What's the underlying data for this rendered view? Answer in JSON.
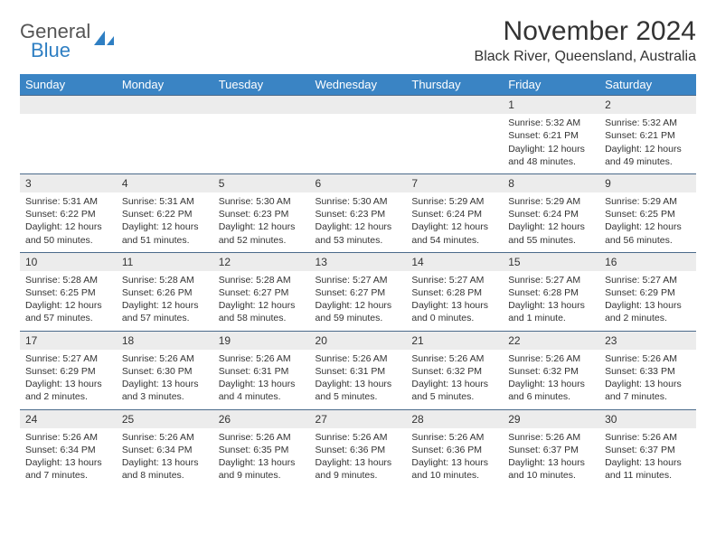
{
  "logo": {
    "word1": "General",
    "word2": "Blue",
    "gray": "#555555",
    "blue": "#2f7fc3"
  },
  "title": "November 2024",
  "location": "Black River, Queensland, Australia",
  "colors": {
    "header_bg": "#3a84c4",
    "header_fg": "#ffffff",
    "daynum_bg": "#ececec",
    "rule": "#4a6a8a",
    "text": "#333333",
    "page_bg": "#ffffff"
  },
  "day_names": [
    "Sunday",
    "Monday",
    "Tuesday",
    "Wednesday",
    "Thursday",
    "Friday",
    "Saturday"
  ],
  "weeks": [
    [
      {
        "num": "",
        "lines": []
      },
      {
        "num": "",
        "lines": []
      },
      {
        "num": "",
        "lines": []
      },
      {
        "num": "",
        "lines": []
      },
      {
        "num": "",
        "lines": []
      },
      {
        "num": "1",
        "lines": [
          "Sunrise: 5:32 AM",
          "Sunset: 6:21 PM",
          "Daylight: 12 hours and 48 minutes."
        ]
      },
      {
        "num": "2",
        "lines": [
          "Sunrise: 5:32 AM",
          "Sunset: 6:21 PM",
          "Daylight: 12 hours and 49 minutes."
        ]
      }
    ],
    [
      {
        "num": "3",
        "lines": [
          "Sunrise: 5:31 AM",
          "Sunset: 6:22 PM",
          "Daylight: 12 hours and 50 minutes."
        ]
      },
      {
        "num": "4",
        "lines": [
          "Sunrise: 5:31 AM",
          "Sunset: 6:22 PM",
          "Daylight: 12 hours and 51 minutes."
        ]
      },
      {
        "num": "5",
        "lines": [
          "Sunrise: 5:30 AM",
          "Sunset: 6:23 PM",
          "Daylight: 12 hours and 52 minutes."
        ]
      },
      {
        "num": "6",
        "lines": [
          "Sunrise: 5:30 AM",
          "Sunset: 6:23 PM",
          "Daylight: 12 hours and 53 minutes."
        ]
      },
      {
        "num": "7",
        "lines": [
          "Sunrise: 5:29 AM",
          "Sunset: 6:24 PM",
          "Daylight: 12 hours and 54 minutes."
        ]
      },
      {
        "num": "8",
        "lines": [
          "Sunrise: 5:29 AM",
          "Sunset: 6:24 PM",
          "Daylight: 12 hours and 55 minutes."
        ]
      },
      {
        "num": "9",
        "lines": [
          "Sunrise: 5:29 AM",
          "Sunset: 6:25 PM",
          "Daylight: 12 hours and 56 minutes."
        ]
      }
    ],
    [
      {
        "num": "10",
        "lines": [
          "Sunrise: 5:28 AM",
          "Sunset: 6:25 PM",
          "Daylight: 12 hours and 57 minutes."
        ]
      },
      {
        "num": "11",
        "lines": [
          "Sunrise: 5:28 AM",
          "Sunset: 6:26 PM",
          "Daylight: 12 hours and 57 minutes."
        ]
      },
      {
        "num": "12",
        "lines": [
          "Sunrise: 5:28 AM",
          "Sunset: 6:27 PM",
          "Daylight: 12 hours and 58 minutes."
        ]
      },
      {
        "num": "13",
        "lines": [
          "Sunrise: 5:27 AM",
          "Sunset: 6:27 PM",
          "Daylight: 12 hours and 59 minutes."
        ]
      },
      {
        "num": "14",
        "lines": [
          "Sunrise: 5:27 AM",
          "Sunset: 6:28 PM",
          "Daylight: 13 hours and 0 minutes."
        ]
      },
      {
        "num": "15",
        "lines": [
          "Sunrise: 5:27 AM",
          "Sunset: 6:28 PM",
          "Daylight: 13 hours and 1 minute."
        ]
      },
      {
        "num": "16",
        "lines": [
          "Sunrise: 5:27 AM",
          "Sunset: 6:29 PM",
          "Daylight: 13 hours and 2 minutes."
        ]
      }
    ],
    [
      {
        "num": "17",
        "lines": [
          "Sunrise: 5:27 AM",
          "Sunset: 6:29 PM",
          "Daylight: 13 hours and 2 minutes."
        ]
      },
      {
        "num": "18",
        "lines": [
          "Sunrise: 5:26 AM",
          "Sunset: 6:30 PM",
          "Daylight: 13 hours and 3 minutes."
        ]
      },
      {
        "num": "19",
        "lines": [
          "Sunrise: 5:26 AM",
          "Sunset: 6:31 PM",
          "Daylight: 13 hours and 4 minutes."
        ]
      },
      {
        "num": "20",
        "lines": [
          "Sunrise: 5:26 AM",
          "Sunset: 6:31 PM",
          "Daylight: 13 hours and 5 minutes."
        ]
      },
      {
        "num": "21",
        "lines": [
          "Sunrise: 5:26 AM",
          "Sunset: 6:32 PM",
          "Daylight: 13 hours and 5 minutes."
        ]
      },
      {
        "num": "22",
        "lines": [
          "Sunrise: 5:26 AM",
          "Sunset: 6:32 PM",
          "Daylight: 13 hours and 6 minutes."
        ]
      },
      {
        "num": "23",
        "lines": [
          "Sunrise: 5:26 AM",
          "Sunset: 6:33 PM",
          "Daylight: 13 hours and 7 minutes."
        ]
      }
    ],
    [
      {
        "num": "24",
        "lines": [
          "Sunrise: 5:26 AM",
          "Sunset: 6:34 PM",
          "Daylight: 13 hours and 7 minutes."
        ]
      },
      {
        "num": "25",
        "lines": [
          "Sunrise: 5:26 AM",
          "Sunset: 6:34 PM",
          "Daylight: 13 hours and 8 minutes."
        ]
      },
      {
        "num": "26",
        "lines": [
          "Sunrise: 5:26 AM",
          "Sunset: 6:35 PM",
          "Daylight: 13 hours and 9 minutes."
        ]
      },
      {
        "num": "27",
        "lines": [
          "Sunrise: 5:26 AM",
          "Sunset: 6:36 PM",
          "Daylight: 13 hours and 9 minutes."
        ]
      },
      {
        "num": "28",
        "lines": [
          "Sunrise: 5:26 AM",
          "Sunset: 6:36 PM",
          "Daylight: 13 hours and 10 minutes."
        ]
      },
      {
        "num": "29",
        "lines": [
          "Sunrise: 5:26 AM",
          "Sunset: 6:37 PM",
          "Daylight: 13 hours and 10 minutes."
        ]
      },
      {
        "num": "30",
        "lines": [
          "Sunrise: 5:26 AM",
          "Sunset: 6:37 PM",
          "Daylight: 13 hours and 11 minutes."
        ]
      }
    ]
  ]
}
